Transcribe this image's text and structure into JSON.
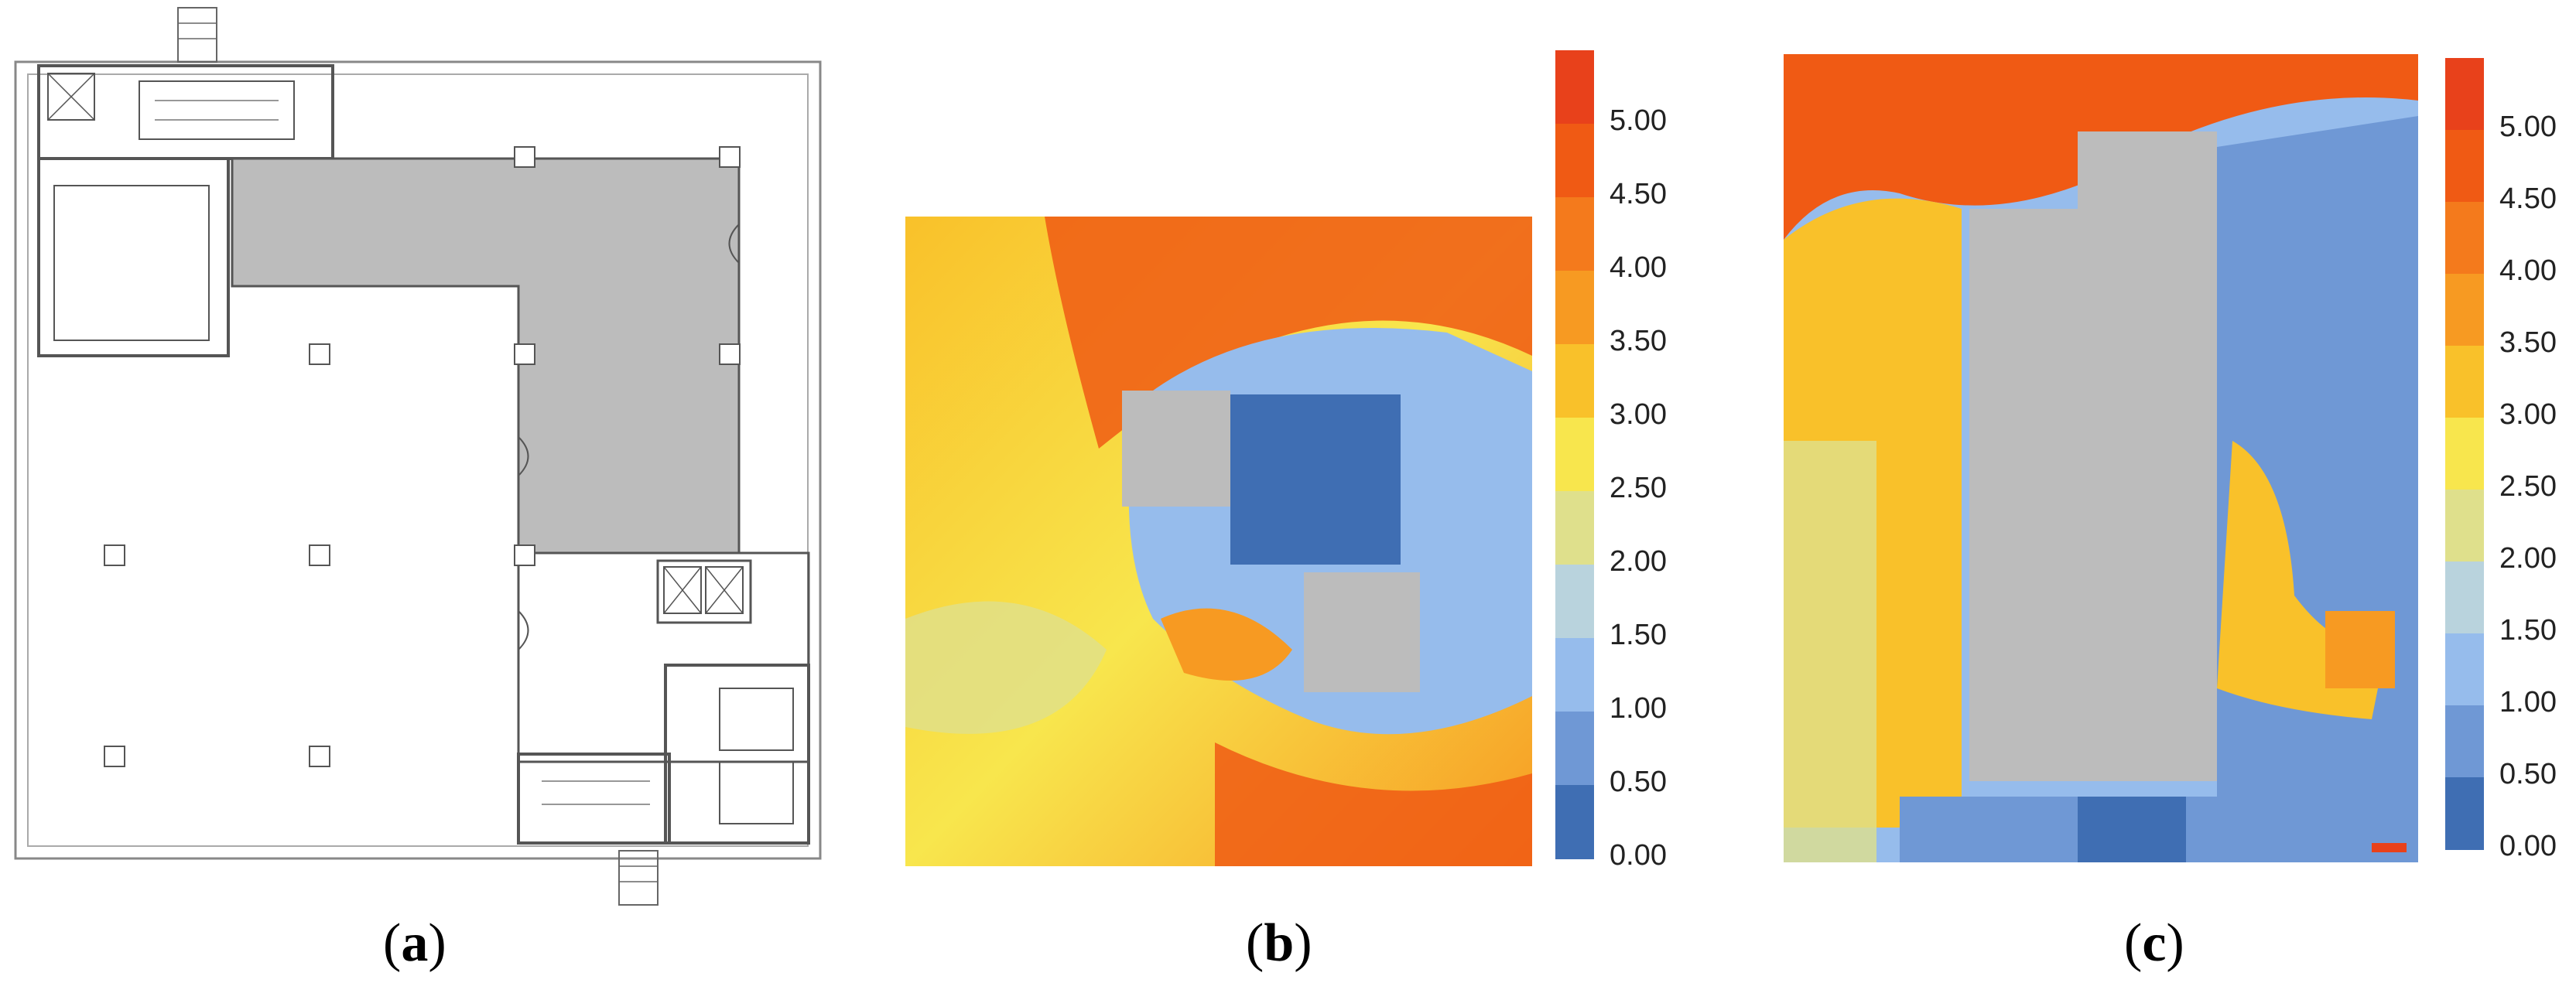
{
  "captions": [
    {
      "open": "(",
      "letter": "a",
      "close": ")"
    },
    {
      "open": "(",
      "letter": "b",
      "close": ")"
    },
    {
      "open": "(",
      "letter": "c",
      "close": ")"
    }
  ],
  "colorbar": {
    "labels": [
      "5.00",
      "4.50",
      "4.00",
      "3.50",
      "3.00",
      "2.50",
      "2.00",
      "1.50",
      "1.00",
      "0.50",
      "0.00"
    ],
    "colors": [
      "#e8411b",
      "#f05a14",
      "#f47a1c",
      "#f79a22",
      "#f9c12a",
      "#f8e64d",
      "#dfe08c",
      "#b9d3dd",
      "#96bcec",
      "#6f98d5",
      "#3f6eb3"
    ]
  },
  "colors": {
    "building_gray": "#bcbcbc",
    "plan_line": "#555555"
  }
}
